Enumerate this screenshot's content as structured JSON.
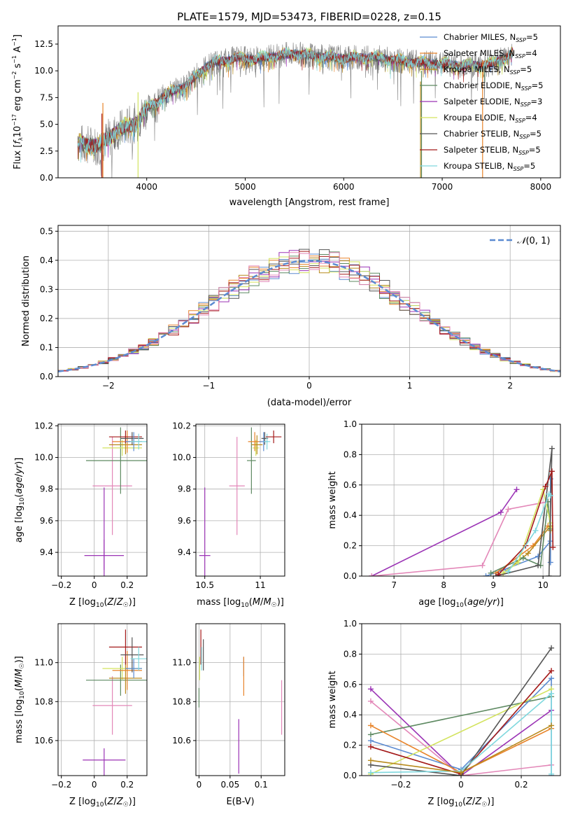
{
  "title": "PLATE=1579, MJD=53473, FIBERID=0228, z=0.15",
  "colors": {
    "cM": "#5b8bd1",
    "sM": "#e8842a",
    "kM": "#b88a1d",
    "cE": "#5e8a62",
    "sE": "#9b33b5",
    "kE": "#d3e35e",
    "cS": "#555555",
    "sS": "#a41a1a",
    "kS": "#7fd8de",
    "pink": "#e387b8",
    "gray": "#808080",
    "normal": "#5b8bd1"
  },
  "chart_data": [
    {
      "type": "line",
      "title": "PLATE=1579, MJD=53473, FIBERID=0228, z=0.15",
      "xlabel": "wavelength [Angstrom, rest frame]",
      "ylabel": "Flux [f_λ 10^-17 erg cm^-2 s^-1 A^-1]",
      "xlim": [
        3100,
        8200
      ],
      "ylim": [
        0,
        14.2
      ],
      "xticks": [
        4000,
        5000,
        6000,
        7000,
        8000
      ],
      "yticks": [
        0.0,
        2.5,
        5.0,
        7.5,
        10.0,
        12.5
      ],
      "legend_position": "top-right",
      "legend": [
        {
          "label": "Chabrier MILES, N",
          "sub": "SSP",
          "val": "=5",
          "color": "cM"
        },
        {
          "label": "Salpeter MILES, N",
          "sub": "SSP",
          "val": "=4",
          "color": "sM"
        },
        {
          "label": "Kroupa MILES, N",
          "sub": "SSP",
          "val": "=5",
          "color": "kM"
        },
        {
          "label": "Chabrier ELODIE, N",
          "sub": "SSP",
          "val": "=5",
          "color": "cE"
        },
        {
          "label": "Salpeter ELODIE, N",
          "sub": "SSP",
          "val": "=3",
          "color": "sE"
        },
        {
          "label": "Kroupa ELODIE, N",
          "sub": "SSP",
          "val": "=4",
          "color": "kE"
        },
        {
          "label": "Chabrier STELIB, N",
          "sub": "SSP",
          "val": "=5",
          "color": "cS"
        },
        {
          "label": "Salpeter STELIB, N",
          "sub": "SSP",
          "val": "=5",
          "color": "sS"
        },
        {
          "label": "Kroupa STELIB, N",
          "sub": "SSP",
          "val": "=5",
          "color": "kS"
        }
      ],
      "spectrum_continuum": [
        [
          3300,
          3.2
        ],
        [
          3500,
          3.0
        ],
        [
          3600,
          3.6
        ],
        [
          3700,
          4.4
        ],
        [
          3800,
          4.8
        ],
        [
          3900,
          5.2
        ],
        [
          4000,
          6.5
        ],
        [
          4200,
          7.8
        ],
        [
          4400,
          8.6
        ],
        [
          4500,
          9.5
        ],
        [
          4600,
          10.4
        ],
        [
          4700,
          10.8
        ],
        [
          4900,
          11.2
        ],
        [
          5100,
          11.1
        ],
        [
          5300,
          11.4
        ],
        [
          5500,
          11.6
        ],
        [
          5700,
          11.4
        ],
        [
          6000,
          11.2
        ],
        [
          6300,
          11.3
        ],
        [
          6600,
          10.9
        ],
        [
          6900,
          10.7
        ],
        [
          7200,
          10.5
        ],
        [
          7500,
          10.6
        ],
        [
          7700,
          11.6
        ]
      ],
      "spike_lines": [
        [
          3545,
          0
        ],
        [
          3555,
          0
        ],
        [
          3912,
          0
        ],
        [
          6780,
          0
        ],
        [
          6790,
          0
        ],
        [
          7410,
          0
        ]
      ]
    },
    {
      "type": "line",
      "xlabel": "(data-model)/error",
      "ylabel": "Normed distribution",
      "xlim": [
        -2.5,
        2.5
      ],
      "ylim": [
        0,
        0.52
      ],
      "xticks": [
        -2,
        -1,
        0,
        1,
        2
      ],
      "yticks": [
        0.0,
        0.1,
        0.2,
        0.3,
        0.4,
        0.5
      ],
      "legend": [
        {
          "label": "N(0,1)",
          "style": "dashed",
          "color": "normal"
        }
      ],
      "bin_width": 0.1,
      "histograms": [
        {
          "color": "cM",
          "seed": 1
        },
        {
          "color": "sM",
          "seed": 2
        },
        {
          "color": "kM",
          "seed": 3
        },
        {
          "color": "cE",
          "seed": 4
        },
        {
          "color": "sE",
          "seed": 5
        },
        {
          "color": "kE",
          "seed": 6
        },
        {
          "color": "cS",
          "seed": 7
        },
        {
          "color": "sS",
          "seed": 8
        },
        {
          "color": "pink",
          "seed": 9
        }
      ]
    },
    {
      "type": "scatter",
      "xlabel": "Z [log10(Z/Z☉)]",
      "ylabel": "age [log10(age/yr)]",
      "xlim": [
        -0.22,
        0.32
      ],
      "ylim": [
        9.25,
        10.21
      ],
      "xticks": [
        -0.2,
        0.0,
        0.2
      ],
      "yticks": [
        9.4,
        9.6,
        9.8,
        10.0,
        10.2
      ],
      "errorbars": [
        {
          "color": "sE",
          "x": 0.06,
          "y": 9.38,
          "xerr": 0.12,
          "yerr": 0.1,
          "y2err": 0.43
        },
        {
          "color": "sE",
          "x": 0.06,
          "y": 9.55,
          "xerr": 0.0,
          "yerr": 0.26
        },
        {
          "color": "pink",
          "x": 0.11,
          "y": 9.82,
          "xerr": 0.12,
          "yerr": 0.31
        },
        {
          "color": "cE",
          "x": 0.16,
          "y": 9.98,
          "xerr": 0.21,
          "yerr": 0.21
        },
        {
          "color": "kE",
          "x": 0.17,
          "y": 10.06,
          "xerr": 0.12,
          "yerr": 0.05
        },
        {
          "color": "kM",
          "x": 0.19,
          "y": 10.08,
          "xerr": 0.1,
          "yerr": 0.06
        },
        {
          "color": "sM",
          "x": 0.2,
          "y": 10.1,
          "xerr": 0.09,
          "yerr": 0.07
        },
        {
          "color": "sS",
          "x": 0.19,
          "y": 10.13,
          "xerr": 0.1,
          "yerr": 0.04
        },
        {
          "color": "cS",
          "x": 0.23,
          "y": 10.12,
          "xerr": 0.07,
          "yerr": 0.04
        },
        {
          "color": "cM",
          "x": 0.24,
          "y": 10.1,
          "xerr": 0.05,
          "yerr": 0.06
        },
        {
          "color": "kS",
          "x": 0.27,
          "y": 10.1,
          "xerr": 0.05,
          "yerr": 0.05
        }
      ]
    },
    {
      "type": "scatter",
      "xlabel": "mass [log10(M/M☉)]",
      "ylabel": "",
      "xlim": [
        10.42,
        11.22
      ],
      "ylim": [
        9.25,
        10.21
      ],
      "xticks": [
        10.5,
        11.0
      ],
      "yticks": [
        9.4,
        9.6,
        9.8,
        10.0,
        10.2
      ],
      "errorbars": [
        {
          "color": "sE",
          "x": 10.5,
          "y": 9.38,
          "xerr": 0.05,
          "yerr": 0.43
        },
        {
          "color": "pink",
          "x": 10.79,
          "y": 9.82,
          "xerr": 0.07,
          "yerr": 0.31
        },
        {
          "color": "cE",
          "x": 10.92,
          "y": 9.98,
          "xerr": 0.04,
          "yerr": 0.21
        },
        {
          "color": "kE",
          "x": 10.96,
          "y": 10.06,
          "xerr": 0.03,
          "yerr": 0.05
        },
        {
          "color": "kM",
          "x": 10.97,
          "y": 10.08,
          "xerr": 0.05,
          "yerr": 0.06
        },
        {
          "color": "sM",
          "x": 10.95,
          "y": 10.1,
          "xerr": 0.06,
          "yerr": 0.06
        },
        {
          "color": "cM",
          "x": 11.03,
          "y": 10.1,
          "xerr": 0.04,
          "yerr": 0.06
        },
        {
          "color": "cS",
          "x": 11.04,
          "y": 10.12,
          "xerr": 0.03,
          "yerr": 0.04
        },
        {
          "color": "kS",
          "x": 11.06,
          "y": 10.1,
          "xerr": 0.03,
          "yerr": 0.05
        },
        {
          "color": "sS",
          "x": 11.12,
          "y": 10.13,
          "xerr": 0.07,
          "yerr": 0.04
        }
      ]
    },
    {
      "type": "line",
      "xlabel": "age [log10(age/yr)]",
      "ylabel": "mass weight",
      "xlim": [
        6.35,
        10.35
      ],
      "ylim": [
        0,
        1.0
      ],
      "xticks": [
        7,
        8,
        9,
        10
      ],
      "yticks": [
        0.0,
        0.2,
        0.4,
        0.6,
        0.8,
        1.0
      ],
      "series": [
        {
          "color": "sE",
          "points": [
            [
              6.55,
              0.0
            ],
            [
              9.15,
              0.42
            ],
            [
              9.47,
              0.57
            ]
          ]
        },
        {
          "color": "pink",
          "points": [
            [
              6.55,
              0.0
            ],
            [
              8.78,
              0.07
            ],
            [
              9.3,
              0.44
            ],
            [
              10.1,
              0.49
            ]
          ]
        },
        {
          "color": "cM",
          "points": [
            [
              8.85,
              0.0
            ],
            [
              9.2,
              0.04
            ],
            [
              9.9,
              0.13
            ],
            [
              10.15,
              0.23
            ],
            [
              10.15,
              0.64
            ],
            [
              10.15,
              0.09
            ]
          ]
        },
        {
          "color": "sM",
          "points": [
            [
              9.05,
              0.02
            ],
            [
              9.8,
              0.2
            ],
            [
              10.1,
              0.33
            ],
            [
              10.15,
              0.31
            ]
          ]
        },
        {
          "color": "kM",
          "points": [
            [
              9.2,
              0.02
            ],
            [
              9.7,
              0.15
            ],
            [
              10.15,
              0.33
            ],
            [
              10.15,
              0.3
            ]
          ]
        },
        {
          "color": "cE",
          "points": [
            [
              8.95,
              0.02
            ],
            [
              9.6,
              0.12
            ],
            [
              9.95,
              0.07
            ],
            [
              10.1,
              0.49
            ],
            [
              10.15,
              0.31
            ]
          ]
        },
        {
          "color": "kE",
          "points": [
            [
              9.2,
              0.02
            ],
            [
              9.5,
              0.09
            ],
            [
              10.0,
              0.57
            ],
            [
              10.15,
              0.35
            ],
            [
              10.15,
              0.32
            ]
          ]
        },
        {
          "color": "cS",
          "points": [
            [
              9.05,
              0.0
            ],
            [
              9.9,
              0.07
            ],
            [
              10.18,
              0.84
            ],
            [
              10.12,
              0.0
            ]
          ]
        },
        {
          "color": "sS",
          "points": [
            [
              9.1,
              0.01
            ],
            [
              9.65,
              0.2
            ],
            [
              10.05,
              0.59
            ],
            [
              10.18,
              0.69
            ],
            [
              10.2,
              0.19
            ]
          ]
        },
        {
          "color": "kS",
          "points": [
            [
              9.3,
              0.03
            ],
            [
              9.85,
              0.3
            ],
            [
              10.12,
              0.54
            ],
            [
              10.15,
              0.53
            ]
          ]
        }
      ]
    },
    {
      "type": "scatter",
      "xlabel": "Z [log10(Z/Z☉)]",
      "ylabel": "mass [log10(M/M☉)]",
      "xlim": [
        -0.22,
        0.32
      ],
      "ylim": [
        10.42,
        11.2
      ],
      "xticks": [
        -0.2,
        0.0,
        0.2
      ],
      "yticks": [
        10.6,
        10.8,
        11.0
      ],
      "errorbars": [
        {
          "color": "sE",
          "x": 0.06,
          "y": 10.5,
          "xerr": 0.13,
          "yerr": 0.06,
          "y2err": 0.22
        },
        {
          "color": "pink",
          "x": 0.11,
          "y": 10.78,
          "xerr": 0.12,
          "yerr": 0.15
        },
        {
          "color": "cE",
          "x": 0.16,
          "y": 10.91,
          "xerr": 0.21,
          "yerr": 0.08
        },
        {
          "color": "kE",
          "x": 0.17,
          "y": 10.97,
          "xerr": 0.12,
          "yerr": 0.06
        },
        {
          "color": "kM",
          "x": 0.19,
          "y": 10.92,
          "xerr": 0.1,
          "yerr": 0.08
        },
        {
          "color": "sM",
          "x": 0.2,
          "y": 10.96,
          "xerr": 0.09,
          "yerr": 0.1
        },
        {
          "color": "sS",
          "x": 0.19,
          "y": 11.08,
          "xerr": 0.1,
          "yerr": 0.09
        },
        {
          "color": "cS",
          "x": 0.23,
          "y": 11.04,
          "xerr": 0.07,
          "yerr": 0.09
        },
        {
          "color": "cM",
          "x": 0.24,
          "y": 10.97,
          "xerr": 0.05,
          "yerr": 0.05
        },
        {
          "color": "kS",
          "x": 0.27,
          "y": 11.02,
          "xerr": 0.05,
          "yerr": 0.06
        }
      ]
    },
    {
      "type": "scatter",
      "xlabel": "E(B-V)",
      "ylabel": "",
      "xlim": [
        -0.005,
        0.138
      ],
      "ylim": [
        10.42,
        11.2
      ],
      "xticks": [
        0.0,
        0.05,
        0.1
      ],
      "yticks": [
        10.6,
        10.8,
        11.0
      ],
      "errorbars": [
        {
          "color": "cE",
          "x": 0.0,
          "y": 10.82,
          "xerr": 0,
          "yerr": 0.05
        },
        {
          "color": "kE",
          "x": 0.001,
          "y": 10.97,
          "xerr": 0,
          "yerr": 0.06
        },
        {
          "color": "sS",
          "x": 0.003,
          "y": 11.08,
          "xerr": 0,
          "yerr": 0.09
        },
        {
          "color": "kS",
          "x": 0.004,
          "y": 11.02,
          "xerr": 0,
          "yerr": 0.06
        },
        {
          "color": "cS",
          "x": 0.007,
          "y": 11.04,
          "xerr": 0,
          "yerr": 0.08
        },
        {
          "color": "sE",
          "x": 0.064,
          "y": 10.57,
          "xerr": 0,
          "yerr": 0.14
        },
        {
          "color": "cM",
          "x": 0.072,
          "y": 10.98,
          "xerr": 0,
          "yerr": 0.05
        },
        {
          "color": "sM",
          "x": 0.072,
          "y": 10.93,
          "xerr": 0,
          "yerr": 0.1
        },
        {
          "color": "pink",
          "x": 0.133,
          "y": 10.77,
          "xerr": 0,
          "yerr": 0.14
        }
      ]
    },
    {
      "type": "line",
      "xlabel": "Z [log10(Z/Z☉)]",
      "ylabel": "mass weight",
      "xlim": [
        -0.33,
        0.33
      ],
      "ylim": [
        0,
        1.0
      ],
      "xticks": [
        -0.2,
        0.0,
        0.2
      ],
      "yticks": [
        0.0,
        0.2,
        0.4,
        0.6,
        0.8,
        1.0
      ],
      "series": [
        {
          "color": "sE",
          "points": [
            [
              -0.3,
              0.57
            ],
            [
              0.0,
              0.0
            ],
            [
              0.3,
              0.43
            ]
          ]
        },
        {
          "color": "pink",
          "points": [
            [
              -0.3,
              0.49
            ],
            [
              0.0,
              0.0
            ],
            [
              0.3,
              0.07
            ]
          ]
        },
        {
          "color": "cE",
          "points": [
            [
              -0.3,
              0.27
            ],
            [
              0.3,
              0.52
            ]
          ]
        },
        {
          "color": "cM",
          "points": [
            [
              -0.3,
              0.23
            ],
            [
              0.0,
              0.04
            ],
            [
              0.3,
              0.64
            ],
            [
              0.3,
              0.0
            ]
          ]
        },
        {
          "color": "sM",
          "points": [
            [
              -0.3,
              0.33
            ],
            [
              0.0,
              0.02
            ],
            [
              0.3,
              0.31
            ]
          ]
        },
        {
          "color": "kE",
          "points": [
            [
              -0.3,
              0.01
            ],
            [
              0.3,
              0.57
            ]
          ]
        },
        {
          "color": "sS",
          "points": [
            [
              -0.3,
              0.19
            ],
            [
              0.0,
              0.01
            ],
            [
              0.3,
              0.69
            ]
          ]
        },
        {
          "color": "cS",
          "points": [
            [
              -0.3,
              0.07
            ],
            [
              0.0,
              0.0
            ],
            [
              0.3,
              0.84
            ]
          ]
        },
        {
          "color": "kS",
          "points": [
            [
              -0.3,
              0.02
            ],
            [
              0.0,
              0.03
            ],
            [
              0.3,
              0.54
            ],
            [
              0.3,
              0.01
            ]
          ]
        },
        {
          "color": "kM",
          "points": [
            [
              -0.3,
              0.1
            ],
            [
              0.0,
              0.02
            ],
            [
              0.3,
              0.33
            ]
          ]
        }
      ]
    }
  ]
}
